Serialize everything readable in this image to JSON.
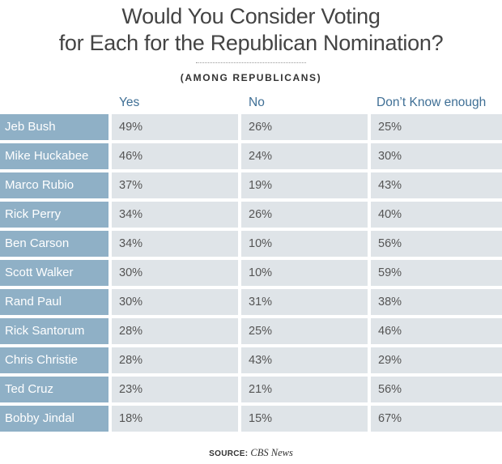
{
  "chart_data": {
    "type": "table",
    "title_lines": [
      "Would You Consider Voting",
      "for Each for the Republican Nomination?"
    ],
    "subtitle": "(AMONG REPUBLICANS)",
    "columns": [
      "Yes",
      "No",
      "Don’t Know enough"
    ],
    "rows": [
      {
        "name": "Jeb Bush",
        "values": [
          "49%",
          "26%",
          "25%"
        ]
      },
      {
        "name": "Mike Huckabee",
        "values": [
          "46%",
          "24%",
          "30%"
        ]
      },
      {
        "name": "Marco Rubio",
        "values": [
          "37%",
          "19%",
          "43%"
        ]
      },
      {
        "name": "Rick Perry",
        "values": [
          "34%",
          "26%",
          "40%"
        ]
      },
      {
        "name": "Ben Carson",
        "values": [
          "34%",
          "10%",
          "56%"
        ]
      },
      {
        "name": "Scott Walker",
        "values": [
          "30%",
          "10%",
          "59%"
        ]
      },
      {
        "name": "Rand Paul",
        "values": [
          "30%",
          "31%",
          "38%"
        ]
      },
      {
        "name": "Rick Santorum",
        "values": [
          "28%",
          "25%",
          "46%"
        ]
      },
      {
        "name": "Chris Christie",
        "values": [
          "28%",
          "43%",
          "29%"
        ]
      },
      {
        "name": "Ted Cruz",
        "values": [
          "23%",
          "21%",
          "56%"
        ]
      },
      {
        "name": "Bobby Jindal",
        "values": [
          "18%",
          "15%",
          "67%"
        ]
      }
    ]
  },
  "source": {
    "label": "SOURCE:",
    "name": "CBS News"
  },
  "colors": {
    "name_cell": "#8fb0c6",
    "value_cell": "#dfe4e8",
    "header_text": "#3f6f95"
  }
}
